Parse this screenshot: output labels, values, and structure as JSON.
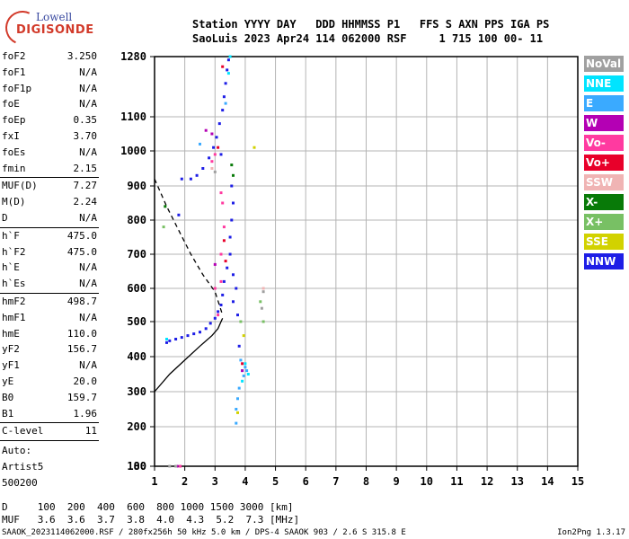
{
  "logo": {
    "line1": "Lowell",
    "line2": "DIGISONDE"
  },
  "header": {
    "row1": "Station YYYY DAY   DDD HHMMSS P1   FFS S AXN PPS IGA PS",
    "row2": "SaoLuis 2023 Apr24 114 062000 RSF     1 715 100 00- 11"
  },
  "params": [
    {
      "k": "foF2",
      "v": "3.250"
    },
    {
      "k": "foF1",
      "v": "N/A"
    },
    {
      "k": "foF1p",
      "v": "N/A"
    },
    {
      "k": "foE",
      "v": "N/A"
    },
    {
      "k": "foEp",
      "v": "0.35"
    },
    {
      "k": "fxI",
      "v": "3.70"
    },
    {
      "k": "foEs",
      "v": "N/A"
    },
    {
      "k": "fmin",
      "v": "2.15"
    },
    {
      "k": "MUF(D)",
      "v": "7.27"
    },
    {
      "k": "M(D)",
      "v": "2.24"
    },
    {
      "k": "D",
      "v": "N/A"
    },
    {
      "k": "h`F",
      "v": "475.0"
    },
    {
      "k": "h`F2",
      "v": "475.0"
    },
    {
      "k": "h`E",
      "v": "N/A"
    },
    {
      "k": "h`Es",
      "v": "N/A"
    },
    {
      "k": "hmF2",
      "v": "498.7"
    },
    {
      "k": "hmF1",
      "v": "N/A"
    },
    {
      "k": "hmE",
      "v": "110.0"
    },
    {
      "k": "yF2",
      "v": "156.7"
    },
    {
      "k": "yF1",
      "v": "N/A"
    },
    {
      "k": "yE",
      "v": "20.0"
    },
    {
      "k": "B0",
      "v": "159.7"
    },
    {
      "k": "B1",
      "v": "1.96"
    },
    {
      "k": "C-level",
      "v": "11"
    }
  ],
  "auto": {
    "label": "Auto:",
    "name": "Artist5",
    "version": "500200"
  },
  "legend": [
    {
      "label": "NoVal",
      "color": "#a0a0a0"
    },
    {
      "label": "NNE",
      "color": "#00e4ff"
    },
    {
      "label": "E",
      "color": "#3aaaff"
    },
    {
      "label": "W",
      "color": "#b400b4"
    },
    {
      "label": "Vo-",
      "color": "#ff3aa0"
    },
    {
      "label": "Vo+",
      "color": "#e8002a"
    },
    {
      "label": "SSW",
      "color": "#f0b4b4"
    },
    {
      "label": "X-",
      "color": "#087a08"
    },
    {
      "label": "X+",
      "color": "#78c064"
    },
    {
      "label": "SSE",
      "color": "#d2d200"
    },
    {
      "label": "NNW",
      "color": "#1e1ee6"
    }
  ],
  "bottom": {
    "d_row": "D     100  200  400  600  800 1000 1500 3000 [km]",
    "muf_row": "MUF   3.6  3.6  3.7  3.8  4.0  4.3  5.2  7.3 [MHz]",
    "footer_left": "SAAOK_2023114062000.RSF / 280fx256h 50 kHz 5.0 km / DPS-4 SAAOK 903 / 2.6 S 315.8 E",
    "footer_right": "Ion2Png 1.3.17"
  },
  "chart_data": {
    "type": "scatter",
    "x_ticks": [
      "1",
      "2",
      "3",
      "4",
      "5",
      "6",
      "7",
      "8",
      "9",
      "10",
      "11",
      "12",
      "13",
      "14",
      "15"
    ],
    "y_ticks": [
      "80",
      "100",
      "200",
      "300",
      "400",
      "500",
      "600",
      "700",
      "800",
      "900",
      "1000",
      "1100",
      "1280"
    ],
    "xlim": [
      1,
      15
    ],
    "ylim": [
      80,
      1280
    ],
    "grid": true,
    "series": [
      {
        "color": "#1e1ee6",
        "points": [
          [
            1.4,
            440
          ],
          [
            1.5,
            445
          ],
          [
            1.7,
            450
          ],
          [
            1.9,
            455
          ],
          [
            2.1,
            460
          ],
          [
            2.3,
            465
          ],
          [
            2.5,
            470
          ],
          [
            2.7,
            480
          ],
          [
            2.85,
            495
          ],
          [
            3.0,
            510
          ],
          [
            3.1,
            530
          ],
          [
            3.2,
            550
          ],
          [
            3.25,
            580
          ],
          [
            3.3,
            620
          ],
          [
            3.4,
            660
          ],
          [
            3.5,
            700
          ],
          [
            3.6,
            640
          ],
          [
            3.7,
            600
          ],
          [
            3.6,
            560
          ],
          [
            3.5,
            750
          ],
          [
            3.55,
            800
          ],
          [
            3.6,
            850
          ],
          [
            3.55,
            900
          ],
          [
            2.2,
            920
          ],
          [
            2.4,
            930
          ],
          [
            2.6,
            950
          ],
          [
            2.8,
            980
          ],
          [
            2.95,
            1010
          ],
          [
            3.05,
            1040
          ],
          [
            3.15,
            1080
          ],
          [
            3.25,
            1120
          ],
          [
            3.3,
            1160
          ],
          [
            3.35,
            1200
          ],
          [
            3.4,
            1240
          ],
          [
            3.45,
            1270
          ],
          [
            1.8,
            815
          ],
          [
            1.9,
            920
          ],
          [
            3.75,
            520
          ],
          [
            3.8,
            430
          ],
          [
            3.2,
            990
          ]
        ]
      },
      {
        "color": "#ff3aa0",
        "points": [
          [
            3.2,
            880
          ],
          [
            3.25,
            850
          ],
          [
            3.3,
            780
          ],
          [
            3.2,
            700
          ],
          [
            3.0,
            600
          ],
          [
            3.1,
            520
          ],
          [
            2.9,
            970
          ],
          [
            3.0,
            990
          ],
          [
            3.2,
            620
          ],
          [
            1.85,
            30
          ]
        ]
      },
      {
        "color": "#e8002a",
        "points": [
          [
            3.3,
            740
          ],
          [
            3.35,
            680
          ],
          [
            3.1,
            1010
          ],
          [
            3.9,
            380
          ],
          [
            3.25,
            1250
          ]
        ]
      },
      {
        "color": "#3aaaff",
        "points": [
          [
            3.85,
            390
          ],
          [
            3.9,
            360
          ],
          [
            3.95,
            345
          ],
          [
            4.0,
            370
          ],
          [
            4.05,
            360
          ],
          [
            3.8,
            310
          ],
          [
            3.75,
            280
          ],
          [
            3.7,
            250
          ],
          [
            3.7,
            210
          ],
          [
            3.35,
            1140
          ],
          [
            2.5,
            1020
          ]
        ]
      },
      {
        "color": "#00e4ff",
        "points": [
          [
            4.0,
            380
          ],
          [
            4.1,
            350
          ],
          [
            3.9,
            330
          ],
          [
            1.4,
            450
          ],
          [
            3.45,
            1230
          ],
          [
            3.5,
            1280
          ]
        ]
      },
      {
        "color": "#087a08",
        "points": [
          [
            3.55,
            960
          ],
          [
            3.6,
            930
          ],
          [
            1.35,
            840
          ]
        ]
      },
      {
        "color": "#78c064",
        "points": [
          [
            3.85,
            500
          ],
          [
            4.6,
            500
          ],
          [
            4.5,
            560
          ],
          [
            1.3,
            780
          ]
        ]
      },
      {
        "color": "#b400b4",
        "points": [
          [
            3.0,
            670
          ],
          [
            2.9,
            1050
          ],
          [
            2.7,
            1060
          ],
          [
            1.75,
            80
          ],
          [
            3.9,
            360
          ]
        ]
      },
      {
        "color": "#f0b4b4",
        "points": [
          [
            2.9,
            950
          ],
          [
            4.6,
            600
          ]
        ]
      },
      {
        "color": "#d2d200",
        "points": [
          [
            3.95,
            460
          ],
          [
            3.75,
            240
          ],
          [
            4.3,
            1010
          ]
        ]
      },
      {
        "color": "#a0a0a0",
        "points": [
          [
            4.6,
            590
          ],
          [
            4.55,
            540
          ],
          [
            3.0,
            940
          ],
          [
            1.5,
            90
          ],
          [
            1.7,
            80
          ]
        ]
      }
    ],
    "lines": [
      {
        "name": "profile",
        "style": "solid",
        "color": "#000000",
        "points": [
          [
            1.0,
            300
          ],
          [
            1.5,
            350
          ],
          [
            2.0,
            390
          ],
          [
            2.5,
            430
          ],
          [
            2.9,
            460
          ],
          [
            3.1,
            480
          ],
          [
            3.2,
            500
          ],
          [
            3.25,
            510
          ]
        ]
      },
      {
        "name": "extrapolation",
        "style": "dashed",
        "color": "#000000",
        "points": [
          [
            1.0,
            920
          ],
          [
            1.4,
            840
          ],
          [
            1.8,
            770
          ],
          [
            2.2,
            700
          ],
          [
            2.6,
            640
          ],
          [
            3.0,
            590
          ],
          [
            3.25,
            520
          ]
        ]
      }
    ]
  }
}
